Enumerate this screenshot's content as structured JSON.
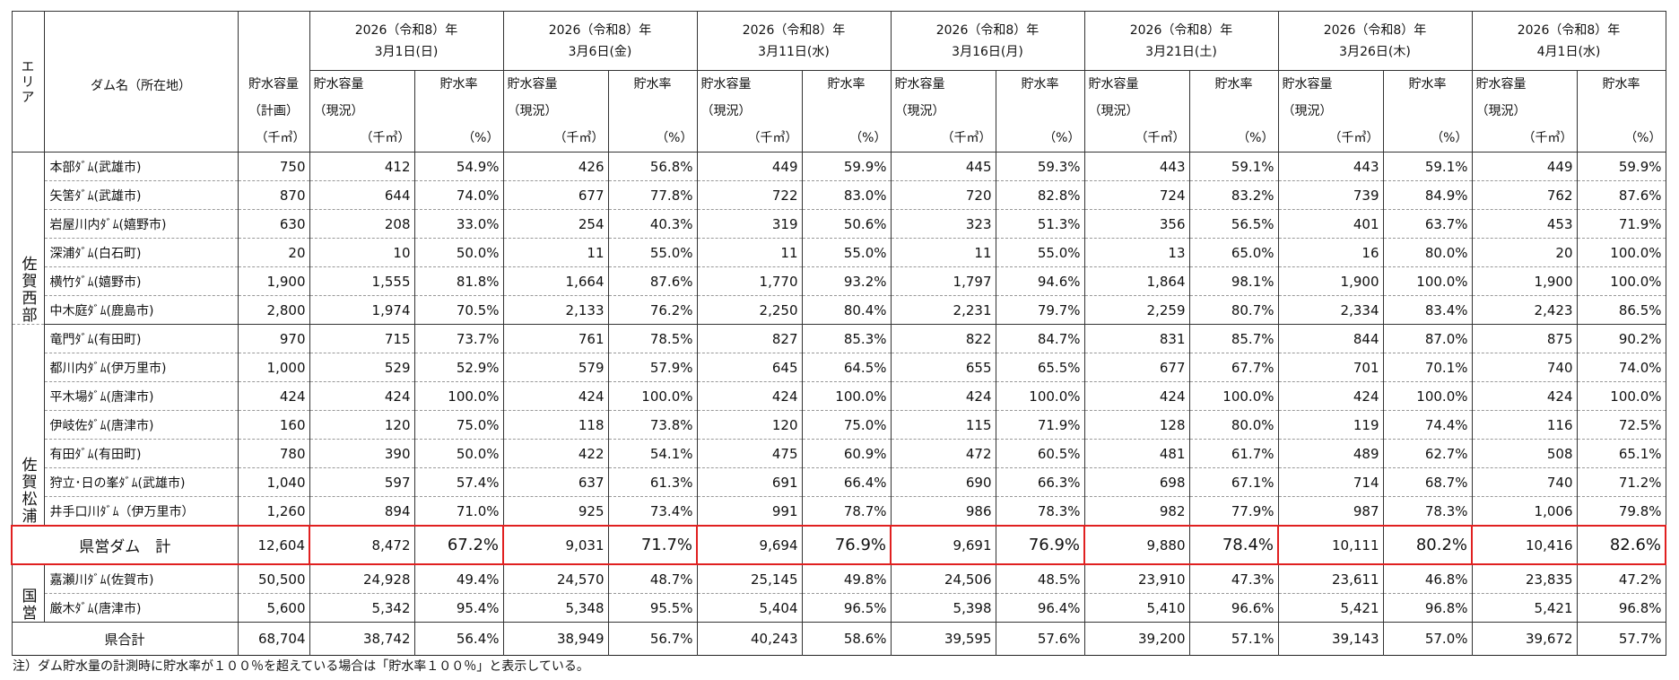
{
  "header": {
    "area": "エリア",
    "dam": "ダム名（所在地）",
    "plan": [
      "貯水容量",
      "（計画）",
      "（千㎥）"
    ],
    "current": [
      "貯水容量",
      "（現況）",
      "（千㎥）"
    ],
    "rate": [
      "貯水率",
      "（%）"
    ],
    "dates": [
      {
        "year": "2026（令和8）年",
        "day": "3月1日(日)"
      },
      {
        "year": "2026（令和8）年",
        "day": "3月6日(金)"
      },
      {
        "year": "2026（令和8）年",
        "day": "3月11日(水)"
      },
      {
        "year": "2026（令和8）年",
        "day": "3月16日(月)"
      },
      {
        "year": "2026（令和8）年",
        "day": "3月21日(土)"
      },
      {
        "year": "2026（令和8）年",
        "day": "3月26日(木)"
      },
      {
        "year": "2026（令和8）年",
        "day": "4月1日(水)"
      }
    ]
  },
  "groups": [
    {
      "area": "佐賀西部",
      "rows": [
        {
          "name": "本部ﾀﾞﾑ(武雄市)",
          "plan": "750",
          "cells": [
            "412",
            "54.9%",
            "426",
            "56.8%",
            "449",
            "59.9%",
            "445",
            "59.3%",
            "443",
            "59.1%",
            "443",
            "59.1%",
            "449",
            "59.9%"
          ]
        },
        {
          "name": "矢筈ﾀﾞﾑ(武雄市)",
          "plan": "870",
          "cells": [
            "644",
            "74.0%",
            "677",
            "77.8%",
            "722",
            "83.0%",
            "720",
            "82.8%",
            "724",
            "83.2%",
            "739",
            "84.9%",
            "762",
            "87.6%"
          ]
        },
        {
          "name": "岩屋川内ﾀﾞﾑ(嬉野市)",
          "plan": "630",
          "cells": [
            "208",
            "33.0%",
            "254",
            "40.3%",
            "319",
            "50.6%",
            "323",
            "51.3%",
            "356",
            "56.5%",
            "401",
            "63.7%",
            "453",
            "71.9%"
          ]
        },
        {
          "name": "深浦ﾀﾞﾑ(白石町)",
          "plan": "20",
          "cells": [
            "10",
            "50.0%",
            "11",
            "55.0%",
            "11",
            "55.0%",
            "11",
            "55.0%",
            "13",
            "65.0%",
            "16",
            "80.0%",
            "20",
            "100.0%"
          ]
        },
        {
          "name": "横竹ﾀﾞﾑ(嬉野市)",
          "plan": "1,900",
          "cells": [
            "1,555",
            "81.8%",
            "1,664",
            "87.6%",
            "1,770",
            "93.2%",
            "1,797",
            "94.6%",
            "1,864",
            "98.1%",
            "1,900",
            "100.0%",
            "1,900",
            "100.0%"
          ]
        },
        {
          "name": "中木庭ﾀﾞﾑ(鹿島市)",
          "plan": "2,800",
          "cells": [
            "1,974",
            "70.5%",
            "2,133",
            "76.2%",
            "2,250",
            "80.4%",
            "2,231",
            "79.7%",
            "2,259",
            "80.7%",
            "2,334",
            "83.4%",
            "2,423",
            "86.5%"
          ]
        }
      ]
    },
    {
      "area": "佐賀松浦",
      "rows": [
        {
          "name": "竜門ﾀﾞﾑ(有田町)",
          "plan": "970",
          "cells": [
            "715",
            "73.7%",
            "761",
            "78.5%",
            "827",
            "85.3%",
            "822",
            "84.7%",
            "831",
            "85.7%",
            "844",
            "87.0%",
            "875",
            "90.2%"
          ]
        },
        {
          "name": "都川内ﾀﾞﾑ(伊万里市)",
          "plan": "1,000",
          "cells": [
            "529",
            "52.9%",
            "579",
            "57.9%",
            "645",
            "64.5%",
            "655",
            "65.5%",
            "677",
            "67.7%",
            "701",
            "70.1%",
            "740",
            "74.0%"
          ]
        },
        {
          "name": "平木場ﾀﾞﾑ(唐津市)",
          "plan": "424",
          "cells": [
            "424",
            "100.0%",
            "424",
            "100.0%",
            "424",
            "100.0%",
            "424",
            "100.0%",
            "424",
            "100.0%",
            "424",
            "100.0%",
            "424",
            "100.0%"
          ]
        },
        {
          "name": "伊岐佐ﾀﾞﾑ(唐津市)",
          "plan": "160",
          "cells": [
            "120",
            "75.0%",
            "118",
            "73.8%",
            "120",
            "75.0%",
            "115",
            "71.9%",
            "128",
            "80.0%",
            "119",
            "74.4%",
            "116",
            "72.5%"
          ]
        },
        {
          "name": "有田ﾀﾞﾑ(有田町)",
          "plan": "780",
          "cells": [
            "390",
            "50.0%",
            "422",
            "54.1%",
            "475",
            "60.9%",
            "472",
            "60.5%",
            "481",
            "61.7%",
            "489",
            "62.7%",
            "508",
            "65.1%"
          ]
        },
        {
          "name": "狩立･日の峯ﾀﾞﾑ(武雄市)",
          "plan": "1,040",
          "cells": [
            "597",
            "57.4%",
            "637",
            "61.3%",
            "691",
            "66.4%",
            "690",
            "66.3%",
            "698",
            "67.1%",
            "714",
            "68.7%",
            "740",
            "71.2%"
          ]
        },
        {
          "name": "井手口川ﾀﾞﾑ（伊万里市）",
          "plan": "1,260",
          "cells": [
            "894",
            "71.0%",
            "925",
            "73.4%",
            "991",
            "78.7%",
            "986",
            "78.3%",
            "982",
            "77.9%",
            "987",
            "78.3%",
            "1,006",
            "79.8%"
          ]
        }
      ]
    }
  ],
  "prefectural_total": {
    "label": "県営ダム　計",
    "plan": "12,604",
    "cells": [
      "8,472",
      "67.2%",
      "9,031",
      "71.7%",
      "9,694",
      "76.9%",
      "9,691",
      "76.9%",
      "9,880",
      "78.4%",
      "10,111",
      "80.2%",
      "10,416",
      "82.6%"
    ]
  },
  "national": {
    "area": "国営",
    "rows": [
      {
        "name": "嘉瀬川ﾀﾞﾑ(佐賀市)",
        "plan": "50,500",
        "cells": [
          "24,928",
          "49.4%",
          "24,570",
          "48.7%",
          "25,145",
          "49.8%",
          "24,506",
          "48.5%",
          "23,910",
          "47.3%",
          "23,611",
          "46.8%",
          "23,835",
          "47.2%"
        ]
      },
      {
        "name": "厳木ﾀﾞﾑ(唐津市)",
        "plan": "5,600",
        "cells": [
          "5,342",
          "95.4%",
          "5,348",
          "95.5%",
          "5,404",
          "96.5%",
          "5,398",
          "96.4%",
          "5,410",
          "96.6%",
          "5,421",
          "96.8%",
          "5,421",
          "96.8%"
        ]
      }
    ]
  },
  "grand_total": {
    "label": "県合計",
    "plan": "68,704",
    "cells": [
      "38,742",
      "56.4%",
      "38,949",
      "56.7%",
      "40,243",
      "58.6%",
      "39,595",
      "57.6%",
      "39,200",
      "57.1%",
      "39,143",
      "57.0%",
      "39,672",
      "57.7%"
    ]
  },
  "note": "注）ダム貯水量の計測時に貯水率が１００％を超えている場合は「貯水率１００％」と表示している。"
}
